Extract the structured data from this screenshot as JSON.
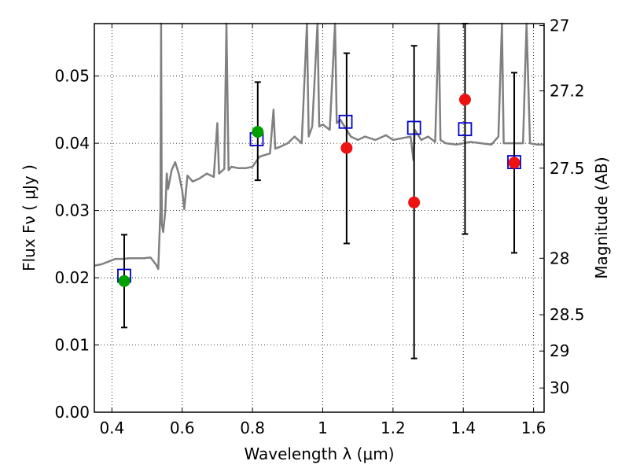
{
  "chart_data": {
    "type": "scatter",
    "xlabel": "Wavelength  λ (μm)",
    "ylabel_left": "Flux  Fν  ( μJy )",
    "ylabel_right": "Magnitude (AB)",
    "xlim": [
      0.35,
      1.63
    ],
    "ylim": [
      0.0,
      0.0578
    ],
    "grid": true,
    "x_ticks": [
      0.4,
      0.6,
      0.8,
      1.0,
      1.2,
      1.4,
      1.6
    ],
    "x_tick_labels": [
      "0.4",
      "0.6",
      "0.8",
      "1",
      "1.2",
      "1.4",
      "1.6"
    ],
    "y_ticks": [
      0.0,
      0.01,
      0.02,
      0.03,
      0.04,
      0.05
    ],
    "y_tick_labels": [
      "0.00",
      "0.01",
      "0.02",
      "0.03",
      "0.04",
      "0.05"
    ],
    "right_ticks": [
      {
        "label": "27",
        "flux": 0.0575
      },
      {
        "label": "27.2",
        "flux": 0.0478
      },
      {
        "label": "27.5",
        "flux": 0.0363
      },
      {
        "label": "28",
        "flux": 0.0229
      },
      {
        "label": "28.5",
        "flux": 0.0145
      },
      {
        "label": "29",
        "flux": 0.0091
      },
      {
        "label": "30",
        "flux": 0.0036
      }
    ],
    "colors": {
      "spectrum": "#808080",
      "model_square": "#0000cc",
      "green_point": "#00a000",
      "red_point": "#ee1111",
      "errorbar": "#000000"
    },
    "spectrum": [
      [
        0.35,
        0.0218
      ],
      [
        0.37,
        0.022
      ],
      [
        0.39,
        0.0224
      ],
      [
        0.41,
        0.0228
      ],
      [
        0.43,
        0.0228
      ],
      [
        0.45,
        0.0229
      ],
      [
        0.47,
        0.0229
      ],
      [
        0.49,
        0.0229
      ],
      [
        0.51,
        0.023
      ],
      [
        0.525,
        0.022
      ],
      [
        0.532,
        0.0213
      ],
      [
        0.538,
        0.03
      ],
      [
        0.54,
        0.0578
      ],
      [
        0.542,
        0.028
      ],
      [
        0.546,
        0.0268
      ],
      [
        0.552,
        0.03
      ],
      [
        0.556,
        0.0355
      ],
      [
        0.56,
        0.0332
      ],
      [
        0.57,
        0.036
      ],
      [
        0.58,
        0.0372
      ],
      [
        0.59,
        0.0355
      ],
      [
        0.6,
        0.033
      ],
      [
        0.606,
        0.0302
      ],
      [
        0.615,
        0.0352
      ],
      [
        0.63,
        0.0343
      ],
      [
        0.65,
        0.0348
      ],
      [
        0.67,
        0.0355
      ],
      [
        0.69,
        0.035
      ],
      [
        0.7,
        0.043
      ],
      [
        0.705,
        0.0355
      ],
      [
        0.72,
        0.0362
      ],
      [
        0.726,
        0.0578
      ],
      [
        0.732,
        0.036
      ],
      [
        0.74,
        0.0365
      ],
      [
        0.76,
        0.0363
      ],
      [
        0.78,
        0.0363
      ],
      [
        0.8,
        0.0365
      ],
      [
        0.82,
        0.038
      ],
      [
        0.85,
        0.0385
      ],
      [
        0.86,
        0.045
      ],
      [
        0.865,
        0.0392
      ],
      [
        0.88,
        0.0395
      ],
      [
        0.9,
        0.04
      ],
      [
        0.92,
        0.041
      ],
      [
        0.94,
        0.04
      ],
      [
        0.955,
        0.0578
      ],
      [
        0.96,
        0.041
      ],
      [
        0.97,
        0.0425
      ],
      [
        0.985,
        0.0578
      ],
      [
        0.99,
        0.0425
      ],
      [
        1.0,
        0.0428
      ],
      [
        1.02,
        0.042
      ],
      [
        1.035,
        0.0578
      ],
      [
        1.04,
        0.043
      ],
      [
        1.05,
        0.0435
      ],
      [
        1.08,
        0.041
      ],
      [
        1.1,
        0.0405
      ],
      [
        1.12,
        0.041
      ],
      [
        1.15,
        0.0405
      ],
      [
        1.18,
        0.0412
      ],
      [
        1.2,
        0.0405
      ],
      [
        1.23,
        0.0408
      ],
      [
        1.25,
        0.041
      ],
      [
        1.258,
        0.0375
      ],
      [
        1.262,
        0.042
      ],
      [
        1.28,
        0.0405
      ],
      [
        1.3,
        0.041
      ],
      [
        1.32,
        0.0402
      ],
      [
        1.33,
        0.0578
      ],
      [
        1.335,
        0.0405
      ],
      [
        1.35,
        0.04
      ],
      [
        1.38,
        0.0398
      ],
      [
        1.4,
        0.04
      ],
      [
        1.42,
        0.0402
      ],
      [
        1.45,
        0.04
      ],
      [
        1.48,
        0.0398
      ],
      [
        1.5,
        0.041
      ],
      [
        1.51,
        0.0578
      ],
      [
        1.515,
        0.04
      ],
      [
        1.54,
        0.04
      ],
      [
        1.57,
        0.04
      ],
      [
        1.58,
        0.0578
      ],
      [
        1.59,
        0.04
      ],
      [
        1.61,
        0.0398
      ],
      [
        1.63,
        0.0398
      ]
    ],
    "model_squares": [
      [
        0.435,
        0.0203
      ],
      [
        0.812,
        0.0406
      ],
      [
        1.065,
        0.0432
      ],
      [
        1.26,
        0.0423
      ],
      [
        1.405,
        0.0421
      ],
      [
        1.545,
        0.0372
      ]
    ],
    "green_points": [
      [
        0.435,
        0.0195
      ],
      [
        0.815,
        0.0417
      ]
    ],
    "red_points": [
      [
        1.068,
        0.0393
      ],
      [
        1.26,
        0.0312
      ],
      [
        1.405,
        0.0465
      ],
      [
        1.545,
        0.0371
      ]
    ],
    "errorbars": [
      {
        "x": 0.435,
        "low": 0.0126,
        "high": 0.0264
      },
      {
        "x": 0.815,
        "low": 0.0345,
        "high": 0.0491
      },
      {
        "x": 1.068,
        "low": 0.0251,
        "high": 0.0534
      },
      {
        "x": 1.26,
        "low": 0.008,
        "high": 0.0545
      },
      {
        "x": 1.405,
        "low": 0.0265,
        "high": 0.0578
      },
      {
        "x": 1.545,
        "low": 0.0237,
        "high": 0.0505
      }
    ]
  }
}
